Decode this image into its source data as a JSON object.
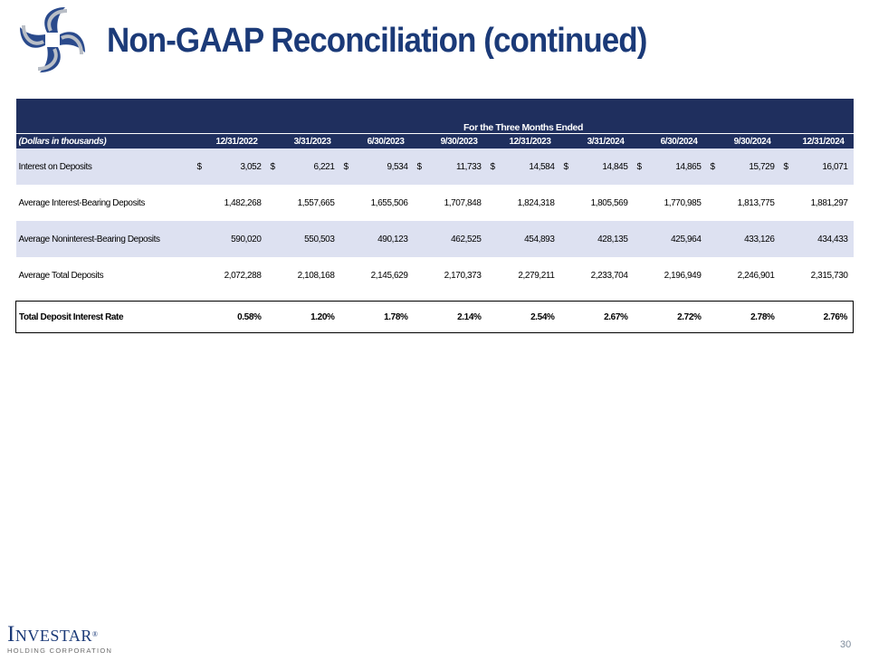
{
  "header": {
    "title": "Non-GAAP Reconciliation (continued)",
    "logo_icon": "pinwheel-logo-icon"
  },
  "table": {
    "group_header": "For the Three Months Ended",
    "units_label": "(Dollars in thousands)",
    "periods": [
      "12/31/2022",
      "3/31/2023",
      "6/30/2023",
      "9/30/2023",
      "12/31/2023",
      "3/31/2024",
      "6/30/2024",
      "9/30/2024",
      "12/31/2024"
    ],
    "currency_symbol": "$",
    "rows": [
      {
        "label": "Interest on Deposits",
        "shaded": true,
        "currency": true,
        "values": [
          "3,052",
          "6,221",
          "9,534",
          "11,733",
          "14,584",
          "14,845",
          "14,865",
          "15,729",
          "16,071"
        ]
      },
      {
        "label": "Average Interest-Bearing Deposits",
        "shaded": false,
        "currency": false,
        "values": [
          "1,482,268",
          "1,557,665",
          "1,655,506",
          "1,707,848",
          "1,824,318",
          "1,805,569",
          "1,770,985",
          "1,813,775",
          "1,881,297"
        ]
      },
      {
        "label": "Average Noninterest-Bearing Deposits",
        "shaded": true,
        "currency": false,
        "values": [
          "590,020",
          "550,503",
          "490,123",
          "462,525",
          "454,893",
          "428,135",
          "425,964",
          "433,126",
          "434,433"
        ]
      },
      {
        "label": "Average Total Deposits",
        "shaded": false,
        "currency": false,
        "values": [
          "2,072,288",
          "2,108,168",
          "2,145,629",
          "2,170,373",
          "2,279,211",
          "2,233,704",
          "2,196,949",
          "2,246,901",
          "2,315,730"
        ]
      }
    ],
    "total_row": {
      "label": "Total Deposit Interest Rate",
      "values": [
        "0.58%",
        "1.20%",
        "1.78%",
        "2.14%",
        "2.54%",
        "2.67%",
        "2.72%",
        "2.78%",
        "2.76%"
      ]
    }
  },
  "footer": {
    "company_name": "Investar",
    "company_sub": "HOLDING CORPORATION",
    "registered_mark": "®",
    "page_number": "30"
  },
  "colors": {
    "title": "#1b3a78",
    "header_band": "#1f2f5e",
    "row_shade": "#dde1f1",
    "logo_blue": "#2a4a8c",
    "logo_gray": "#b9bec6"
  }
}
